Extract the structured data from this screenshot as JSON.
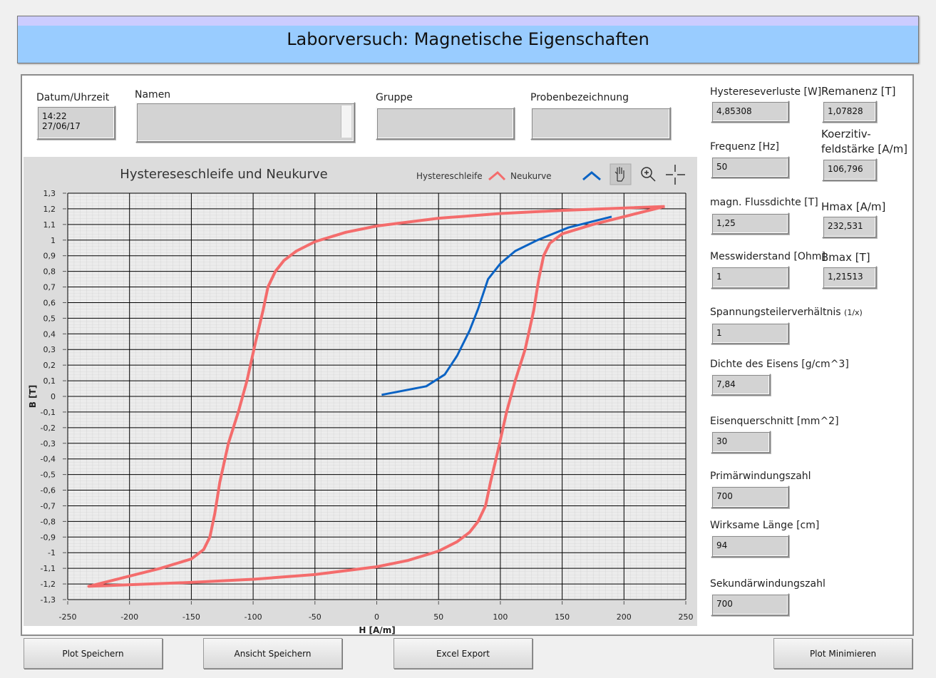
{
  "header": {
    "title": "Laborversuch: Magnetische Eigenschaften"
  },
  "top_fields": [
    {
      "label": "Datum/Uhrzeit",
      "value": "14:22\n27/06/17"
    },
    {
      "label": "Namen"
    },
    {
      "label": "Gruppe"
    },
    {
      "label": "Probenbezeichnung"
    }
  ],
  "side_fields": [
    {
      "label": "Hystereseverluste [W]",
      "value": "4,85308"
    },
    {
      "label": "Remanenz [T]",
      "value": "1,07828"
    },
    {
      "label": "Frequenz [Hz]",
      "value": "50"
    },
    {
      "label": "Koerzitiv-\nfeldstärke [A/m]",
      "value": "106,796"
    },
    {
      "label": "magn. Flussdichte [T]",
      "value": "1,25"
    },
    {
      "label": "Hmax [A/m]",
      "value": "232,531"
    },
    {
      "label": "Messwiderstand [Ohm]",
      "value": "1"
    },
    {
      "label": "Bmax [T]",
      "value": "1,21513"
    },
    {
      "label": "Spannungsteilerverhältnis",
      "unit": "(1/x)",
      "value": "1"
    },
    {
      "label": "Dichte des Eisens [g/cm^3]",
      "value": "7,84"
    },
    {
      "label": "Eisenquerschnitt [mm^2]",
      "value": "30"
    },
    {
      "label": "Primärwindungszahl",
      "value": "700"
    },
    {
      "label": "Wirksame Länge [cm]",
      "value": "94"
    },
    {
      "label": "Sekundärwindungszahl",
      "value": "700"
    }
  ],
  "buttons": [
    "Plot Speichern",
    "Ansicht Speichern",
    "Excel Export",
    "Plot Minimieren"
  ],
  "chart_data": {
    "type": "line",
    "title": "Hystereseschleife und Neukurve",
    "x_label": "H [A/m]",
    "y_label": "B [T]",
    "xlim": [
      -250,
      250
    ],
    "xticks": [
      -250,
      -200,
      -150,
      -100,
      -50,
      0,
      50,
      100,
      150,
      200,
      250
    ],
    "ylim": [
      -1.3,
      1.3
    ],
    "yticks": [
      {
        "value": 1.3,
        "label": "1,3"
      },
      {
        "value": 1.2,
        "label": "1,2"
      },
      {
        "value": 1.1,
        "label": "1,1"
      },
      1,
      {
        "value": 0.9,
        "label": "0,9"
      },
      {
        "value": 0.8,
        "label": "0,8"
      },
      {
        "value": 0.7,
        "label": "0,7"
      },
      {
        "value": 0.6,
        "label": "0,6"
      },
      {
        "value": 0.5,
        "label": "0,5"
      },
      {
        "value": 0.4,
        "label": "0,4"
      },
      {
        "value": 0.3,
        "label": "0,3"
      },
      {
        "value": 0.2,
        "label": "0,2"
      },
      {
        "value": 0.1,
        "label": "0,1"
      },
      0,
      {
        "value": -0.1,
        "label": "-0,1"
      },
      {
        "value": -0.2,
        "label": "-0,2"
      },
      {
        "value": -0.3,
        "label": "-0,3"
      },
      {
        "value": -0.4,
        "label": "-0,4"
      },
      {
        "value": -0.5,
        "label": "-0,5"
      },
      {
        "value": -0.6,
        "label": "-0,6"
      },
      {
        "value": -0.7,
        "label": "-0,7"
      },
      {
        "value": -0.8,
        "label": "-0,8"
      },
      {
        "value": -0.9,
        "label": "-0,9"
      },
      -1,
      {
        "value": -1.1,
        "label": "-1,1"
      },
      {
        "value": -1.2,
        "label": "-1,2"
      },
      {
        "value": -1.3,
        "label": "-1,3"
      }
    ],
    "grid": true,
    "series": [
      {
        "name": "Hystereschleife",
        "color": "#f46c6c",
        "x": [
          233,
          150,
          100,
          50,
          0,
          -25,
          -50,
          -65,
          -75,
          -82,
          -88,
          -92,
          -98,
          -105,
          -112,
          -120,
          -127,
          -131,
          -135,
          -140,
          -150,
          -175,
          -200,
          -233,
          -150,
          -100,
          -50,
          0,
          25,
          50,
          65,
          75,
          82,
          88,
          92,
          98,
          105,
          112,
          120,
          127,
          131,
          135,
          140,
          150,
          175,
          200,
          233
        ],
        "values": [
          1.215,
          1.19,
          1.17,
          1.14,
          1.09,
          1.05,
          0.99,
          0.93,
          0.87,
          0.8,
          0.7,
          0.55,
          0.35,
          0.1,
          -0.1,
          -0.3,
          -0.55,
          -0.75,
          -0.9,
          -0.98,
          -1.04,
          -1.1,
          -1.15,
          -1.215,
          -1.19,
          -1.17,
          -1.14,
          -1.09,
          -1.05,
          -0.99,
          -0.93,
          -0.87,
          -0.8,
          -0.7,
          -0.55,
          -0.35,
          -0.1,
          0.1,
          0.3,
          0.55,
          0.75,
          0.9,
          0.98,
          1.04,
          1.1,
          1.15,
          1.215
        ]
      },
      {
        "name": "Neukurve",
        "color": "#0b63c4",
        "x": [
          4,
          40,
          55,
          65,
          75,
          82,
          90,
          100,
          112,
          130,
          155,
          190
        ],
        "values": [
          0.01,
          0.065,
          0.14,
          0.26,
          0.42,
          0.56,
          0.75,
          0.85,
          0.93,
          1.0,
          1.08,
          1.15
        ]
      }
    ]
  }
}
